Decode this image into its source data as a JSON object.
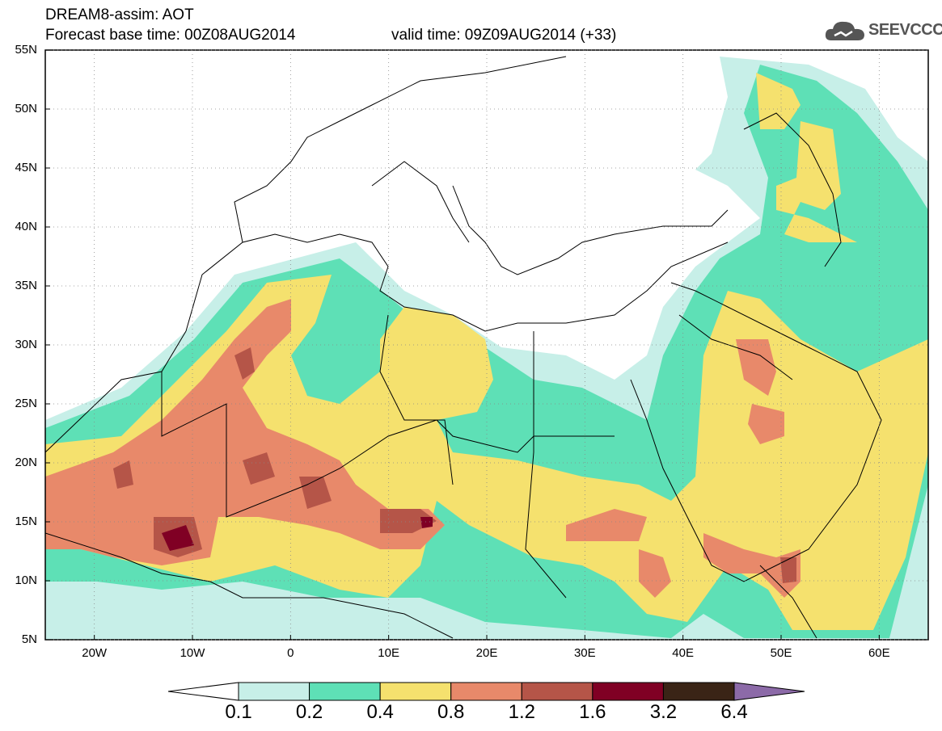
{
  "header": {
    "line1": "DREAM8-assim: AOT",
    "line2": "Forecast base time: 00Z08AUG2014",
    "valid": "valid time: 09Z09AUG2014 (+33)"
  },
  "logo": {
    "text": "SEEVCCC",
    "icon": "cloud-icon"
  },
  "map": {
    "lat_labels": [
      "55N",
      "50N",
      "45N",
      "40N",
      "35N",
      "30N",
      "25N",
      "20N",
      "15N",
      "10N",
      "5N"
    ],
    "lon_labels": [
      "20W",
      "10W",
      "0",
      "10E",
      "20E",
      "30E",
      "40E",
      "50E",
      "60E"
    ],
    "lat_range": [
      5,
      55
    ],
    "lon_range": [
      -25,
      65
    ],
    "grid": "dotted"
  },
  "colorbar": {
    "labels": [
      "0.1",
      "0.2",
      "0.4",
      "0.8",
      "1.2",
      "1.6",
      "3.2",
      "6.4"
    ],
    "colors": [
      "#ffffff",
      "#c7efe8",
      "#5ee0b6",
      "#f5e16e",
      "#e8896a",
      "#b55548",
      "#800024",
      "#3a2416",
      "#8c6aa8"
    ]
  },
  "palette": {
    "c1": "#c7efe8",
    "c2": "#5ee0b6",
    "c3": "#f5e16e",
    "c4": "#e8896a",
    "c5": "#b55548",
    "c6": "#800024"
  }
}
